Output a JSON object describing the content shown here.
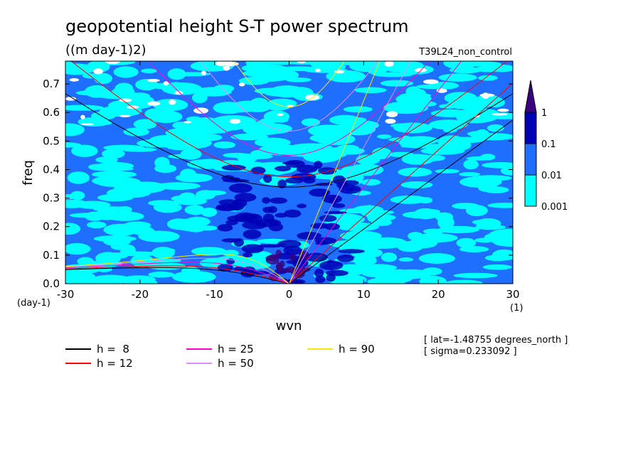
{
  "chart_data": {
    "type": "heatmap",
    "title": "geopotential height S-T power spectrum",
    "subtitle": "((m day-1)2)",
    "experiment": "T39L24_non_control",
    "xlabel": "wvn",
    "ylabel": "freq",
    "x_unit": "(1)",
    "y_unit": "(day-1)",
    "xlim": [
      -30,
      30
    ],
    "ylim": [
      0,
      0.78
    ],
    "x_ticks": [
      "-30",
      "-20",
      "-10",
      "0",
      "10",
      "20",
      "30"
    ],
    "y_ticks": [
      "0.0",
      "0.1",
      "0.2",
      "0.3",
      "0.4",
      "0.5",
      "0.6",
      "0.7"
    ],
    "colorbar": {
      "levels": [
        "0.001",
        "0.01",
        "0.1",
        "1"
      ],
      "colors": [
        "#00ffff",
        "#1e6eff",
        "#0000b4",
        "#3a0080"
      ]
    },
    "dispersion_curves": [
      {
        "label": "h =  8",
        "h": 8,
        "color": "#000000"
      },
      {
        "label": "h = 12",
        "h": 12,
        "color": "#ff0000"
      },
      {
        "label": "h = 25",
        "h": 25,
        "color": "#ff00c8"
      },
      {
        "label": "h = 50",
        "h": 50,
        "color": "#e08cff"
      },
      {
        "label": "h = 90",
        "h": 90,
        "color": "#ffe600"
      }
    ],
    "annotations": [
      "[ lat=-1.48755 degrees_north ]",
      "[ sigma=0.233092 ]"
    ]
  }
}
